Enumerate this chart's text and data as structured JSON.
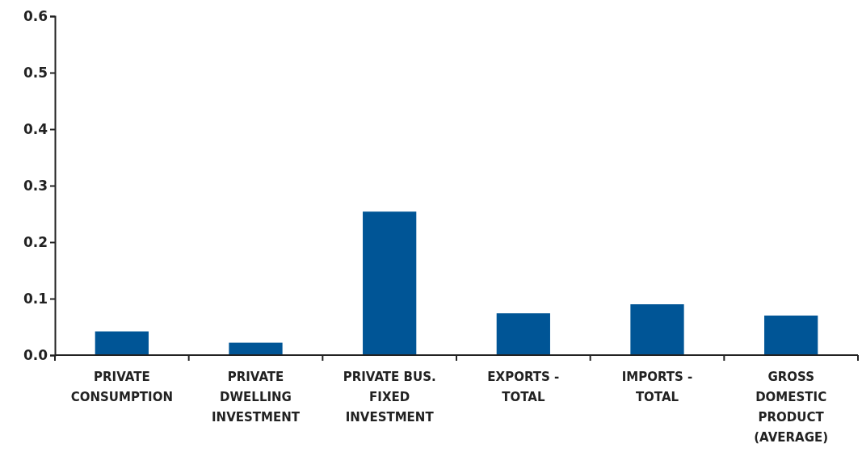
{
  "chart_data": {
    "type": "bar",
    "categories": [
      "PRIVATE CONSUMPTION",
      "PRIVATE DWELLING INVESTMENT",
      "PRIVATE BUS. FIXED INVESTMENT",
      "EXPORTS - TOTAL",
      "IMPORTS - TOTAL",
      "GROSS DOMESTIC PRODUCT (AVERAGE)"
    ],
    "values": [
      0.042,
      0.022,
      0.254,
      0.074,
      0.09,
      0.07
    ],
    "color": "#005596",
    "ylim": [
      0,
      0.6
    ],
    "yticks": [
      {
        "value": 0,
        "label": "0.0"
      },
      0.1,
      0.2,
      0.3,
      0.4,
      0.5,
      0.6
    ]
  }
}
